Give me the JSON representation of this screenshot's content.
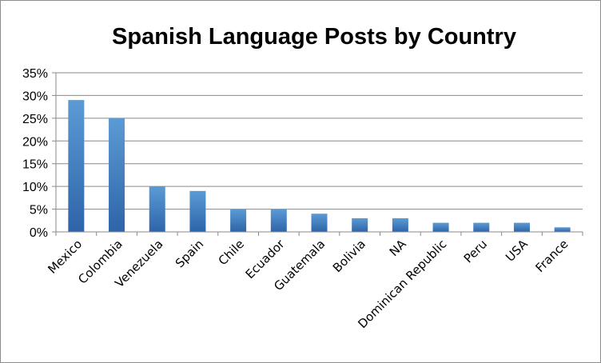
{
  "chart_data": {
    "type": "bar",
    "title": "Spanish Language Posts by Country",
    "xlabel": "",
    "ylabel": "",
    "categories": [
      "Mexico",
      "Colombia",
      "Venezuela",
      "Spain",
      "Chile",
      "Ecuador",
      "Guatemala",
      "Bolivia",
      "NA",
      "Dominican Republic",
      "Peru",
      "USA",
      "France"
    ],
    "values": [
      29,
      25,
      10,
      9,
      5,
      5,
      4,
      3,
      3,
      2,
      2,
      2,
      1
    ],
    "value_unit": "%",
    "ylim": [
      0,
      35
    ],
    "yticks": [
      "0%",
      "5%",
      "10%",
      "15%",
      "20%",
      "25%",
      "30%",
      "35%"
    ],
    "grid": true,
    "legend": "none",
    "colors": {
      "bar_top": "#5b9bd5",
      "bar_bottom": "#2e64a8",
      "grid": "#8a8a8a"
    }
  }
}
